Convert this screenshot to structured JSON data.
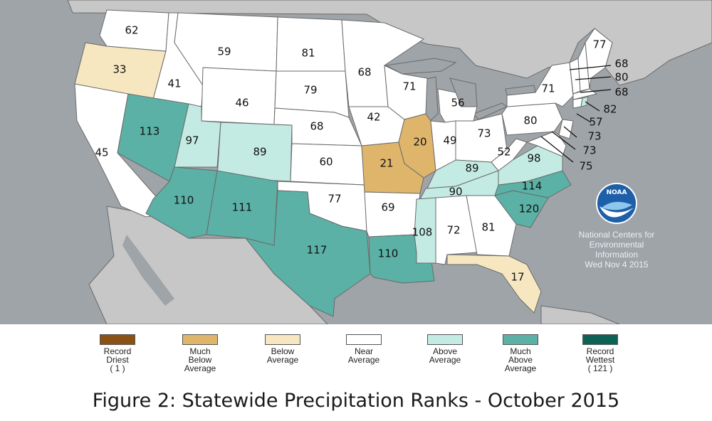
{
  "colors": {
    "ocean": "#9fa4a8",
    "land": "#c7c7c7",
    "near": "#ffffff",
    "below": "#f7e7c1",
    "much_below": "#dfb56b",
    "record_driest": "#8a5315",
    "above": "#c4ebe3",
    "much_above": "#5bb1a5",
    "record_wettest": "#0d6256"
  },
  "ranks": {
    "WA": "62",
    "OR": "33",
    "CA": "45",
    "ID": "41",
    "NV": "113",
    "MT": "59",
    "WY": "46",
    "UT": "97",
    "AZ": "110",
    "CO": "89",
    "NM": "111",
    "ND": "81",
    "SD": "79",
    "NE": "68",
    "KS": "60",
    "OK": "77",
    "TX": "117",
    "MN": "68",
    "IA": "42",
    "MO": "21",
    "AR": "69",
    "LA": "110",
    "WI": "71",
    "IL": "20",
    "MI": "56",
    "IN": "49",
    "OH": "73",
    "KY": "89",
    "TN": "90",
    "MS": "108",
    "AL": "72",
    "GA": "81",
    "FL": "17",
    "SC": "120",
    "NC": "114",
    "VA": "98",
    "WV": "52",
    "PA": "80",
    "NY": "71",
    "ME": "77",
    "NH": "68",
    "VT": "80",
    "MA": "68",
    "CT": "82",
    "NJ": "57",
    "DE": "73",
    "MD": "73",
    "DC": "75"
  },
  "credit": {
    "line1": "National Centers for",
    "line2": "Environmental",
    "line3": "Information",
    "line4": "Wed Nov  4 2015"
  },
  "logo": {
    "text": "NOAA",
    "icon": "noaa-logo-icon"
  },
  "legend": [
    {
      "lines": [
        "Record",
        "Driest",
        "( 1 )"
      ],
      "color": "#8a5315"
    },
    {
      "lines": [
        "Much",
        "Below",
        "Average"
      ],
      "color": "#dfb56b"
    },
    {
      "lines": [
        "Below",
        "Average"
      ],
      "color": "#f7e7c1"
    },
    {
      "lines": [
        "Near",
        "Average"
      ],
      "color": "#ffffff"
    },
    {
      "lines": [
        "Above",
        "Average"
      ],
      "color": "#c4ebe3"
    },
    {
      "lines": [
        "Much",
        "Above",
        "Average"
      ],
      "color": "#5bb1a5"
    },
    {
      "lines": [
        "Record",
        "Wettest",
        "( 121 )"
      ],
      "color": "#0d6256"
    }
  ],
  "caption": "Figure 2: Statewide Precipitation Ranks - October 2015"
}
